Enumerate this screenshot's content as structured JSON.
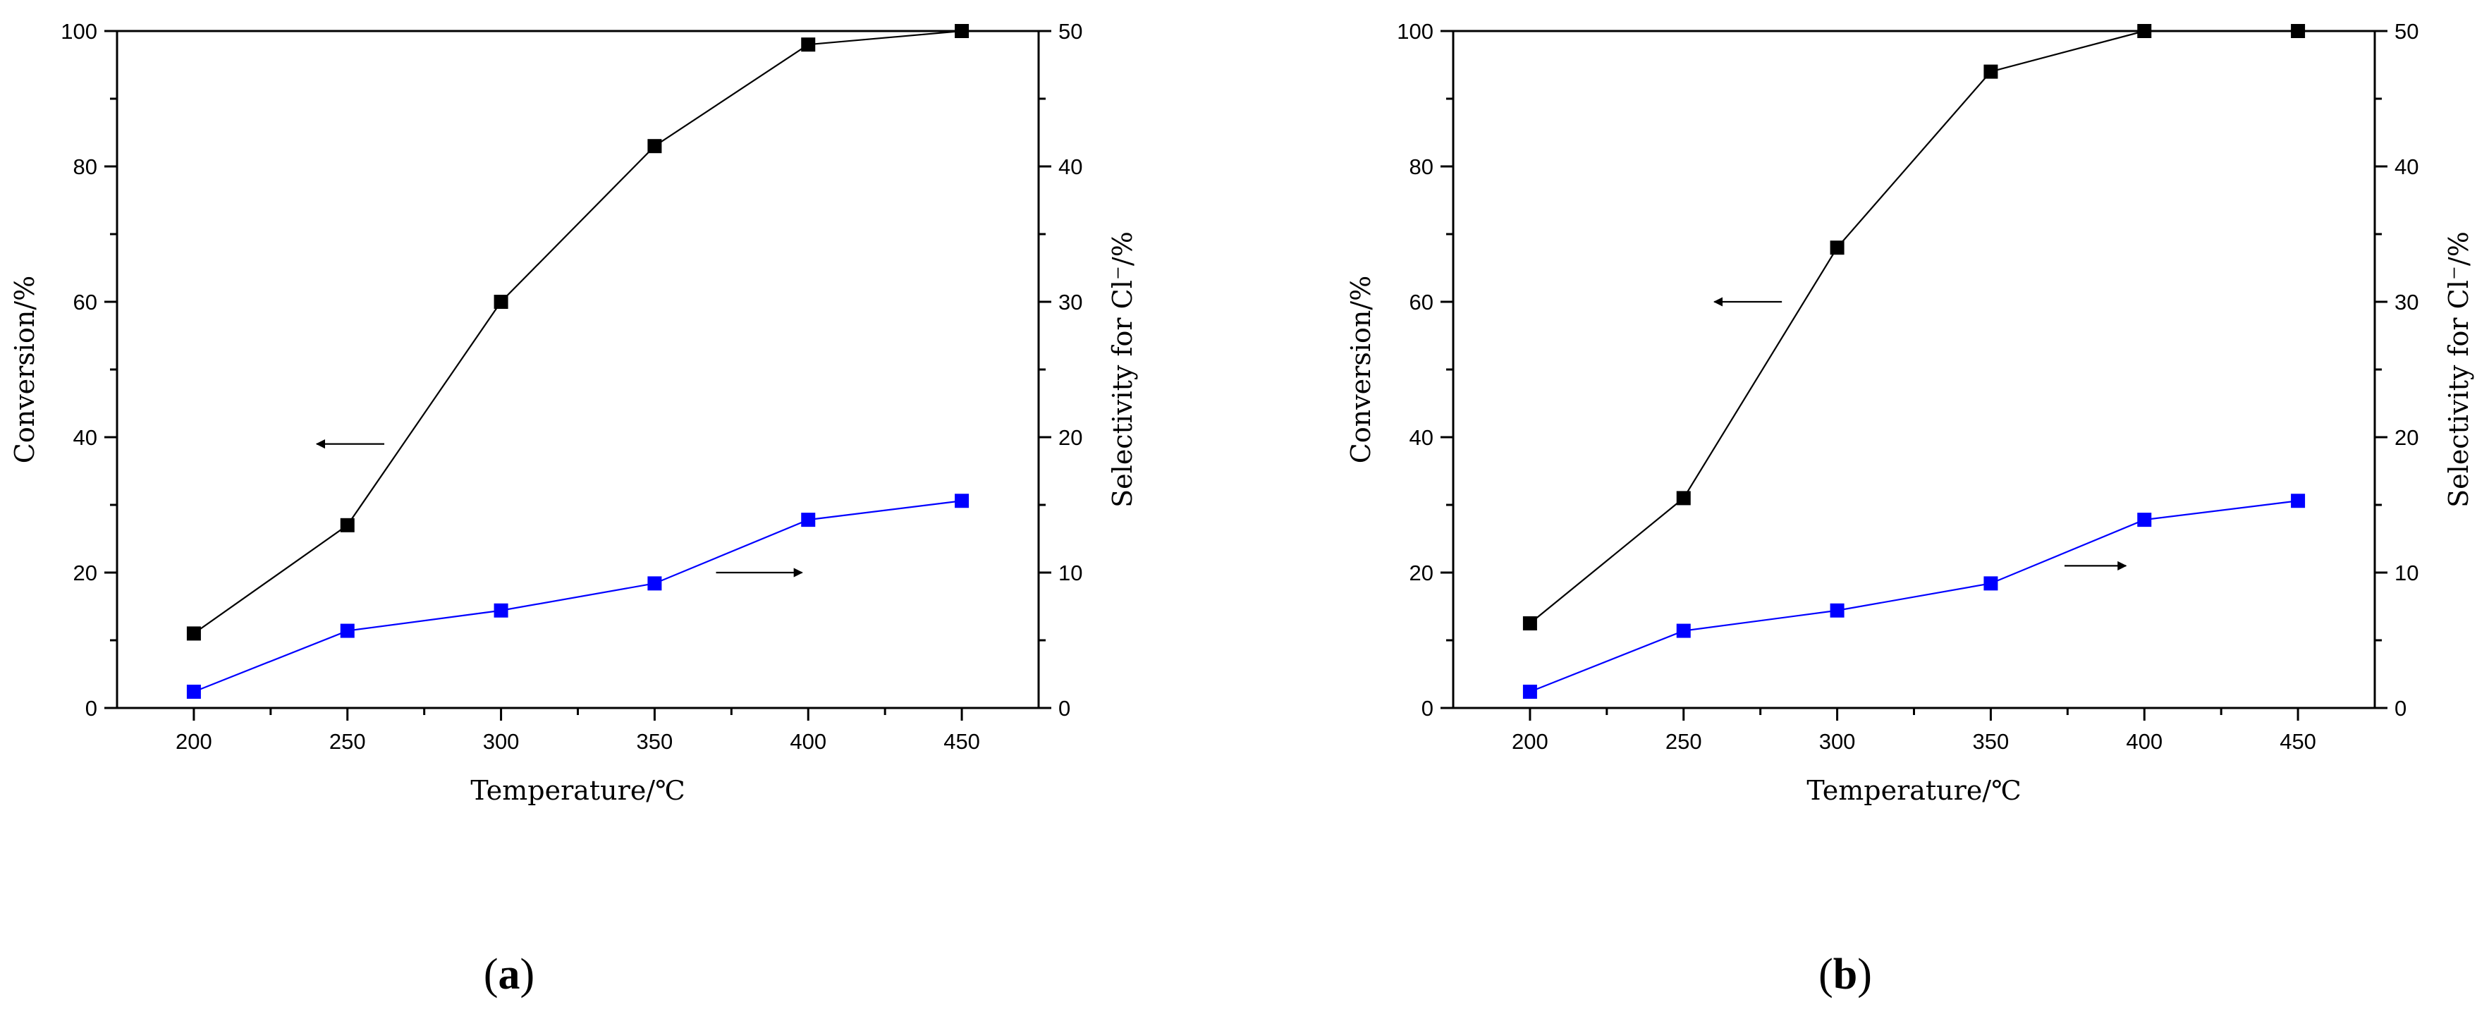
{
  "chart_data": [
    {
      "type": "line",
      "caption_open": "(",
      "caption_letter": "a",
      "caption_close": ")",
      "xlabel": "Temperature/℃",
      "ylabel": "Conversion/%",
      "y2label": "Selectivity for Cl⁻/%",
      "xlim": [
        175,
        475
      ],
      "ylim": [
        0,
        100
      ],
      "y2lim": [
        0,
        50
      ],
      "x_ticks": [
        200,
        250,
        300,
        350,
        400,
        450
      ],
      "y_ticks": [
        0,
        20,
        40,
        60,
        80,
        100
      ],
      "y2_ticks": [
        0,
        10,
        20,
        30,
        40,
        50
      ],
      "x": [
        200,
        250,
        300,
        350,
        400,
        450
      ],
      "series": [
        {
          "axis": "left",
          "color": "#000000",
          "values": [
            11,
            27,
            60,
            83,
            98,
            100
          ]
        },
        {
          "axis": "right",
          "color": "#0000ff",
          "values": [
            1.2,
            5.7,
            7.2,
            9.2,
            13.9,
            15.3
          ]
        }
      ],
      "arrows": [
        {
          "points_to": "left",
          "x_from": 262,
          "x_to": 240,
          "y": 39
        },
        {
          "points_to": "right",
          "x_from": 370,
          "x_to": 398,
          "y": 20
        }
      ],
      "grid": false
    },
    {
      "type": "line",
      "caption_open": "(",
      "caption_letter": "b",
      "caption_close": ")",
      "xlabel": "Temperature/℃",
      "ylabel": "Conversion/%",
      "y2label": "Selectivity for Cl⁻/%",
      "xlim": [
        175,
        475
      ],
      "ylim": [
        0,
        100
      ],
      "y2lim": [
        0,
        50
      ],
      "x_ticks": [
        200,
        250,
        300,
        350,
        400,
        450
      ],
      "y_ticks": [
        0,
        20,
        40,
        60,
        80,
        100
      ],
      "y2_ticks": [
        0,
        10,
        20,
        30,
        40,
        50
      ],
      "x": [
        200,
        250,
        300,
        350,
        400,
        450
      ],
      "series": [
        {
          "axis": "left",
          "color": "#000000",
          "values": [
            12.5,
            31,
            68,
            94,
            100,
            100
          ]
        },
        {
          "axis": "right",
          "color": "#0000ff",
          "values": [
            1.2,
            5.7,
            7.2,
            9.2,
            13.9,
            15.3
          ]
        }
      ],
      "arrows": [
        {
          "points_to": "left",
          "x_from": 282,
          "x_to": 260,
          "y": 60
        },
        {
          "points_to": "right",
          "x_from": 374,
          "x_to": 394,
          "y": 21
        }
      ],
      "grid": false
    }
  ]
}
